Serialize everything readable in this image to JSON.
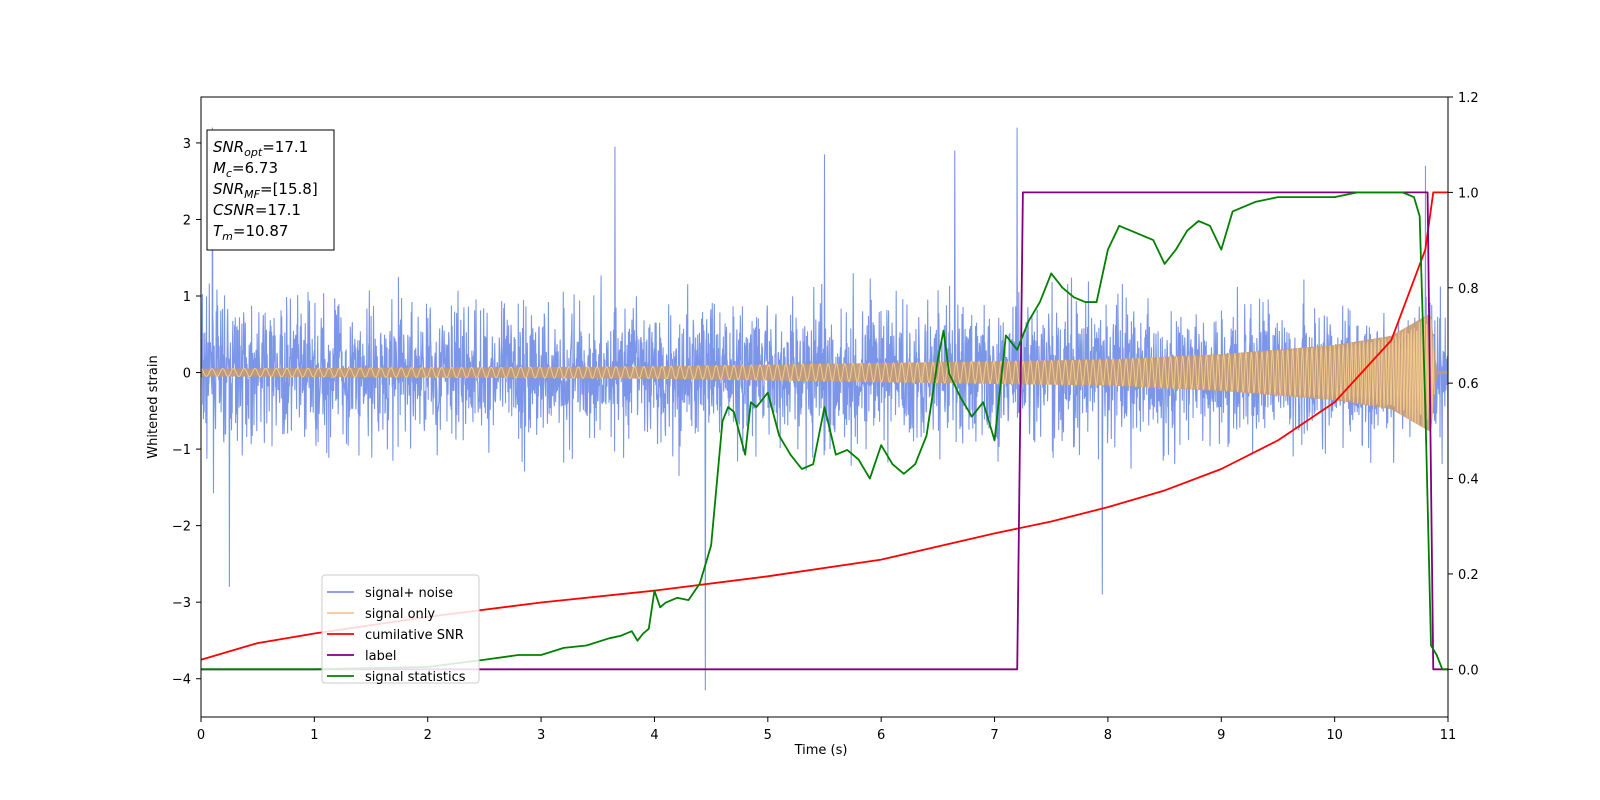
{
  "chart_data": {
    "type": "line",
    "xlabel": "Time (s)",
    "ylabel": "Whitened strain",
    "xlim": [
      0,
      11
    ],
    "ylim": [
      -4.5,
      3.6
    ],
    "y2lim": [
      -0.1,
      1.2
    ],
    "x_ticks": [
      "0",
      "1",
      "2",
      "3",
      "4",
      "5",
      "6",
      "7",
      "8",
      "9",
      "10",
      "11"
    ],
    "y_ticks": [
      "3",
      "2",
      "1",
      "0",
      "−1",
      "−2",
      "−3",
      "−4"
    ],
    "y2_ticks": [
      "1.2",
      "1.0",
      "0.8",
      "0.6",
      "0.4",
      "0.2",
      "0.0"
    ],
    "legend_position": "lower-left",
    "info_box": [
      {
        "main": "SNR",
        "sub": "opt",
        "value": "=17.1"
      },
      {
        "main": "M",
        "sub": "c",
        "value": "=6.73"
      },
      {
        "main": "SNR",
        "sub": "MF",
        "value": "=[15.8]"
      },
      {
        "main": "CSNR",
        "sub": "",
        "value": "=17.1"
      },
      {
        "main": "T",
        "sub": "m",
        "value": "=10.87"
      }
    ],
    "series": [
      {
        "name": "signal+ noise",
        "color": "#7b96e8",
        "axis": "left",
        "style": "noise band (approx. ±1.5 whitened-strain spread)",
        "spikes": [
          {
            "x": 0.1,
            "y": 3.2
          },
          {
            "x": 0.25,
            "y": -2.8
          },
          {
            "x": 3.65,
            "y": 2.95
          },
          {
            "x": 4.45,
            "y": -4.15
          },
          {
            "x": 5.5,
            "y": 2.85
          },
          {
            "x": 6.65,
            "y": 2.9
          },
          {
            "x": 7.2,
            "y": 3.2
          },
          {
            "x": 7.95,
            "y": -2.9
          },
          {
            "x": 10.8,
            "y": 2.7
          }
        ]
      },
      {
        "name": "signal only",
        "color": "#f5c98a",
        "axis": "left",
        "style": "chirp envelope",
        "envelope": {
          "x": [
            0,
            4,
            8,
            9,
            10,
            10.5,
            10.85,
            10.9,
            11
          ],
          "y": [
            0.05,
            0.08,
            0.17,
            0.24,
            0.36,
            0.48,
            0.78,
            0.02,
            0.02
          ]
        }
      },
      {
        "name": "cumilative SNR",
        "color": "#ff0000",
        "axis": "right",
        "x": [
          0,
          0.5,
          1,
          2,
          3,
          4,
          5,
          6,
          7,
          7.5,
          8,
          8.5,
          9,
          9.5,
          10,
          10.5,
          10.8,
          10.87,
          11
        ],
        "y": [
          0.02,
          0.055,
          0.075,
          0.11,
          0.14,
          0.165,
          0.195,
          0.23,
          0.285,
          0.31,
          0.34,
          0.375,
          0.42,
          0.48,
          0.56,
          0.69,
          0.88,
          1.0,
          1.0
        ]
      },
      {
        "name": "label",
        "color": "#800080",
        "axis": "right",
        "x": [
          0,
          7.2,
          7.25,
          10.82,
          10.87,
          11
        ],
        "y": [
          0.0,
          0.0,
          1.0,
          1.0,
          0.0,
          0.0
        ]
      },
      {
        "name": "signal statistics",
        "color": "#008000",
        "axis": "right",
        "x": [
          0,
          1,
          2,
          2.5,
          2.8,
          3,
          3.2,
          3.4,
          3.6,
          3.7,
          3.8,
          3.85,
          3.9,
          3.95,
          4.0,
          4.05,
          4.1,
          4.2,
          4.3,
          4.4,
          4.5,
          4.6,
          4.65,
          4.7,
          4.8,
          4.85,
          4.9,
          5.0,
          5.1,
          5.2,
          5.3,
          5.4,
          5.5,
          5.6,
          5.7,
          5.8,
          5.9,
          6.0,
          6.1,
          6.2,
          6.3,
          6.4,
          6.5,
          6.55,
          6.6,
          6.7,
          6.8,
          6.9,
          7.0,
          7.1,
          7.2,
          7.25,
          7.3,
          7.4,
          7.5,
          7.6,
          7.7,
          7.8,
          7.9,
          8.0,
          8.1,
          8.2,
          8.3,
          8.4,
          8.5,
          8.6,
          8.7,
          8.8,
          8.9,
          9.0,
          9.1,
          9.2,
          9.3,
          9.5,
          9.7,
          9.9,
          10.0,
          10.2,
          10.4,
          10.6,
          10.7,
          10.75,
          10.8,
          10.85,
          10.9,
          10.95,
          11.0
        ],
        "y": [
          0.0,
          0.0,
          0.005,
          0.02,
          0.03,
          0.03,
          0.045,
          0.05,
          0.065,
          0.07,
          0.08,
          0.06,
          0.075,
          0.085,
          0.165,
          0.13,
          0.14,
          0.15,
          0.145,
          0.18,
          0.26,
          0.52,
          0.55,
          0.54,
          0.45,
          0.56,
          0.55,
          0.58,
          0.49,
          0.45,
          0.42,
          0.43,
          0.55,
          0.45,
          0.46,
          0.44,
          0.4,
          0.47,
          0.43,
          0.41,
          0.43,
          0.49,
          0.65,
          0.71,
          0.62,
          0.57,
          0.53,
          0.56,
          0.48,
          0.7,
          0.67,
          0.7,
          0.73,
          0.77,
          0.83,
          0.8,
          0.78,
          0.77,
          0.77,
          0.88,
          0.93,
          0.92,
          0.91,
          0.9,
          0.85,
          0.88,
          0.92,
          0.94,
          0.93,
          0.88,
          0.96,
          0.97,
          0.98,
          0.99,
          0.99,
          0.99,
          0.99,
          1.0,
          1.0,
          1.0,
          0.99,
          0.95,
          0.55,
          0.05,
          0.03,
          0.0,
          0.0
        ]
      }
    ]
  }
}
